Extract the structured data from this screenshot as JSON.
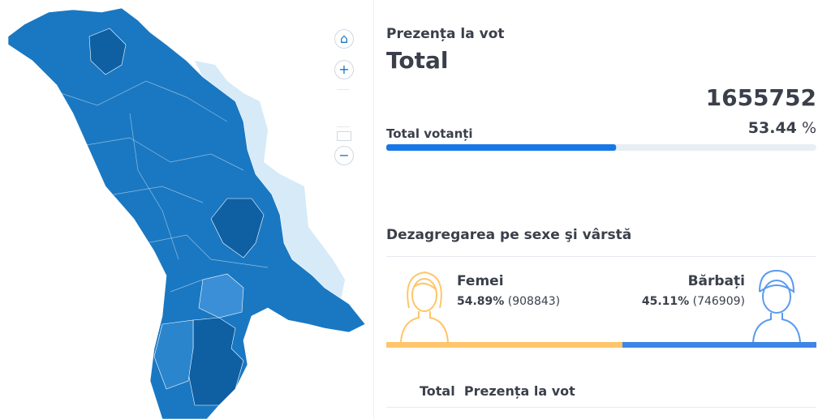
{
  "header": {
    "subtitle": "Prezența la vot",
    "title": "Total"
  },
  "turnout": {
    "count": 1655752,
    "label": "Total votanți",
    "percent": 53.44,
    "percent_unit": "%"
  },
  "gender": {
    "title": "Dezagregarea pe sexe şi vârstă",
    "female": {
      "label": "Femei",
      "percent": {
        "value": 54.89,
        "label": "54.89%"
      },
      "count": {
        "value": 908843,
        "label": "(908843)"
      },
      "color": "#ffc56b"
    },
    "male": {
      "label": "Bărbați",
      "percent": {
        "value": 45.11,
        "label": "45.11%"
      },
      "count": {
        "value": 746909,
        "label": "(746909)"
      },
      "color": "#3d86e6"
    }
  },
  "table": {
    "columns": [
      "Total",
      "Prezența la vot"
    ]
  }
}
